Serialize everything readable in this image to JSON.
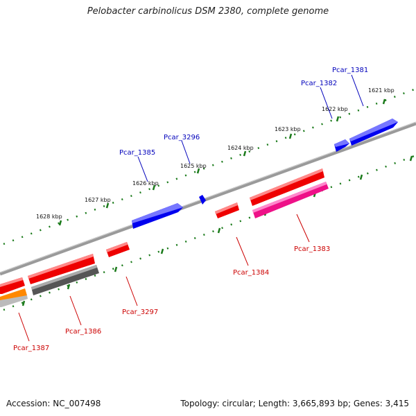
{
  "title": "Pelobacter carbinolicus DSM 2380, complete genome",
  "accession_label": "Accession: NC_007498",
  "stats_label": "Topology: circular; Length: 3,665,893 bp; Genes: 3,415",
  "ruler_labels": [
    "1621 kbp",
    "1622 kbp",
    "1623 kbp",
    "1624 kbp",
    "1625 kbp",
    "1626 kbp",
    "1627 kbp",
    "1628 kbp"
  ],
  "genes": [
    {
      "name": "Pcar_1381",
      "strand": "+",
      "color": "#0000ee"
    },
    {
      "name": "Pcar_1382",
      "strand": "+",
      "color": "#0000ee"
    },
    {
      "name": "Pcar_3296",
      "strand": "+",
      "color": "#0000ee"
    },
    {
      "name": "Pcar_1385",
      "strand": "+",
      "color": "#0000ee"
    },
    {
      "name": "Pcar_1383",
      "strand": "-",
      "color": "#ee0000"
    },
    {
      "name": "Pcar_1384",
      "strand": "-",
      "color": "#ee0000"
    },
    {
      "name": "Pcar_3297",
      "strand": "-",
      "color": "#ee0000"
    },
    {
      "name": "Pcar_1386",
      "strand": "-",
      "color": "#ee0000"
    },
    {
      "name": "Pcar_1387",
      "strand": "-",
      "color": "#ee0000"
    }
  ],
  "colors": {
    "plus_strand": "#0000ee",
    "minus_strand": "#ee0000",
    "rna_feature": "#ee1188",
    "pseudo_feature": "#555555",
    "other_feature": "#ff8800",
    "backbone": "#888888",
    "ruler": "#1a7a1a"
  }
}
